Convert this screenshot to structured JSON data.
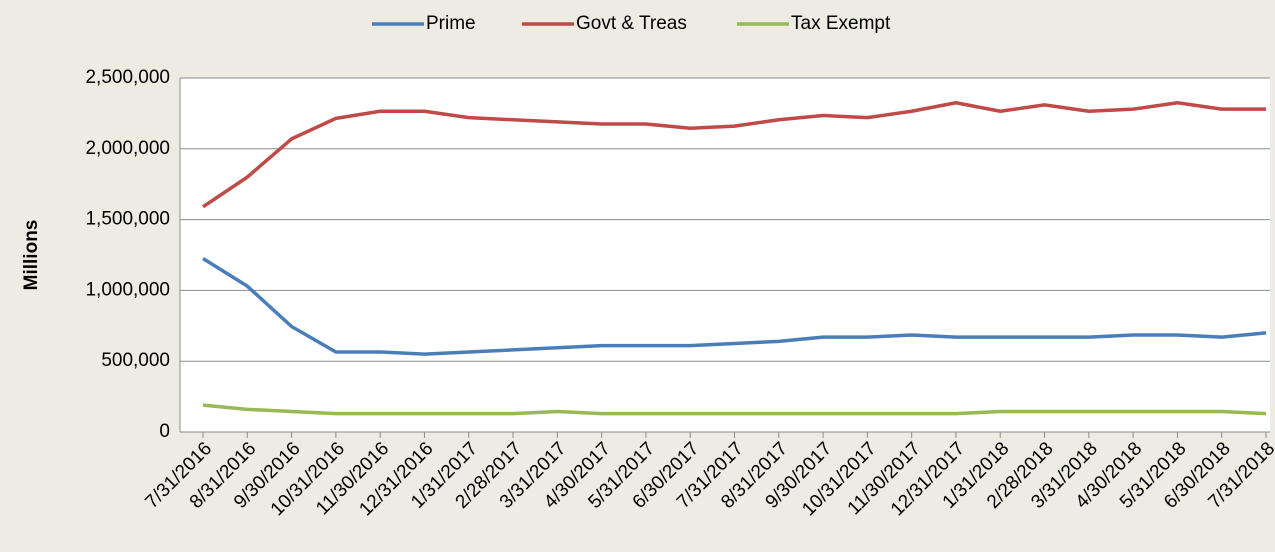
{
  "chart_data": {
    "type": "line",
    "y_label": "Millions",
    "categories": [
      "7/31/2016",
      "8/31/2016",
      "9/30/2016",
      "10/31/2016",
      "11/30/2016",
      "12/31/2016",
      "1/31/2017",
      "2/28/2017",
      "3/31/2017",
      "4/30/2017",
      "5/31/2017",
      "6/30/2017",
      "7/31/2017",
      "8/31/2017",
      "9/30/2017",
      "10/31/2017",
      "11/30/2017",
      "12/31/2017",
      "1/31/2018",
      "2/28/2018",
      "3/31/2018",
      "4/30/2018",
      "5/31/2018",
      "6/30/2018",
      "7/31/2018"
    ],
    "series": [
      {
        "name": "Prime",
        "color": "#4a7ebb",
        "values": [
          1225000,
          1030000,
          745000,
          565000,
          565000,
          550000,
          565000,
          580000,
          595000,
          610000,
          610000,
          610000,
          625000,
          640000,
          670000,
          670000,
          685000,
          670000,
          670000,
          670000,
          670000,
          685000,
          685000,
          670000,
          700000
        ]
      },
      {
        "name": "Govt & Treas",
        "color": "#be4b48",
        "values": [
          1590000,
          1800000,
          2070000,
          2215000,
          2265000,
          2265000,
          2220000,
          2205000,
          2190000,
          2175000,
          2175000,
          2145000,
          2160000,
          2205000,
          2235000,
          2220000,
          2265000,
          2325000,
          2265000,
          2310000,
          2265000,
          2280000,
          2325000,
          2280000,
          2280000
        ]
      },
      {
        "name": "Tax Exempt",
        "color": "#98b954",
        "values": [
          190000,
          160000,
          145000,
          130000,
          130000,
          130000,
          130000,
          130000,
          145000,
          130000,
          130000,
          130000,
          130000,
          130000,
          130000,
          130000,
          130000,
          130000,
          145000,
          145000,
          145000,
          145000,
          145000,
          145000,
          130000
        ]
      }
    ],
    "ylim": [
      0,
      2500000
    ],
    "yticks": [
      0,
      {
        "value": 500000,
        "label": "500,000"
      },
      {
        "value": 1000000,
        "label": "1,000,000"
      },
      {
        "value": 1500000,
        "label": "1,500,000"
      },
      {
        "value": 2000000,
        "label": "2,000,000"
      },
      {
        "value": 2500000,
        "label": "2,500,000"
      }
    ],
    "grid": true,
    "legend": "top"
  }
}
